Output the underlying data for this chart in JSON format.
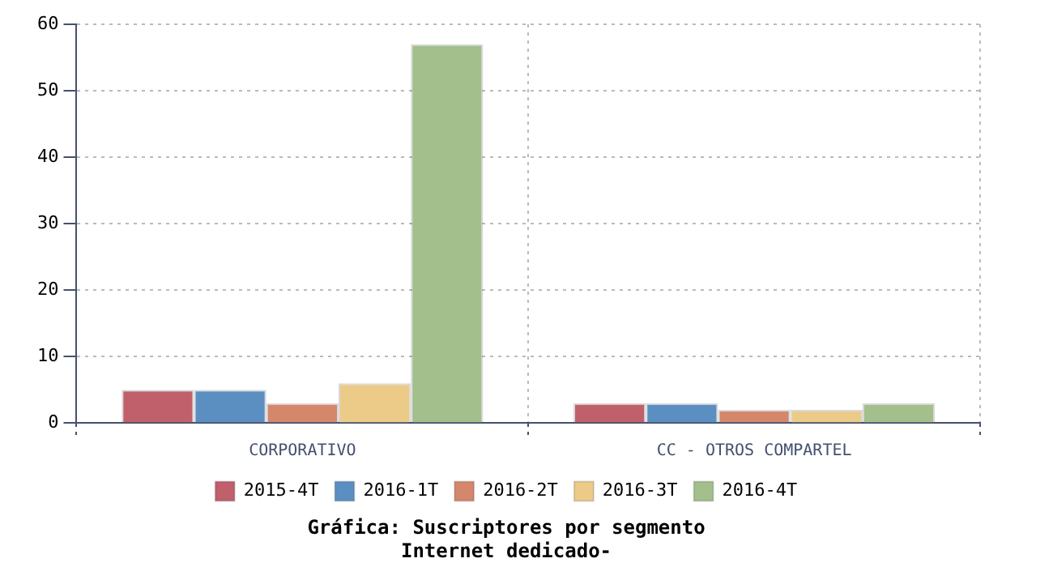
{
  "chart_data": {
    "type": "bar",
    "title": "Gráfica: Suscriptores por segmento\nInternet dedicado-",
    "categories": [
      "CORPORATIVO",
      "CC - OTROS COMPARTEL"
    ],
    "series": [
      {
        "name": "2015-4T",
        "color": "#c0606a",
        "values": [
          5,
          3
        ]
      },
      {
        "name": "2016-1T",
        "color": "#5b8fc2",
        "values": [
          5,
          3
        ]
      },
      {
        "name": "2016-2T",
        "color": "#d4876a",
        "values": [
          3,
          2
        ]
      },
      {
        "name": "2016-3T",
        "color": "#eccb88",
        "values": [
          6,
          2
        ]
      },
      {
        "name": "2016-4T",
        "color": "#a2bf8c",
        "values": [
          57,
          3
        ]
      }
    ],
    "ylim": [
      0,
      60
    ],
    "yticks": [
      0,
      10,
      20,
      30,
      40,
      50,
      60
    ],
    "grid": true,
    "legend": "bottom"
  }
}
